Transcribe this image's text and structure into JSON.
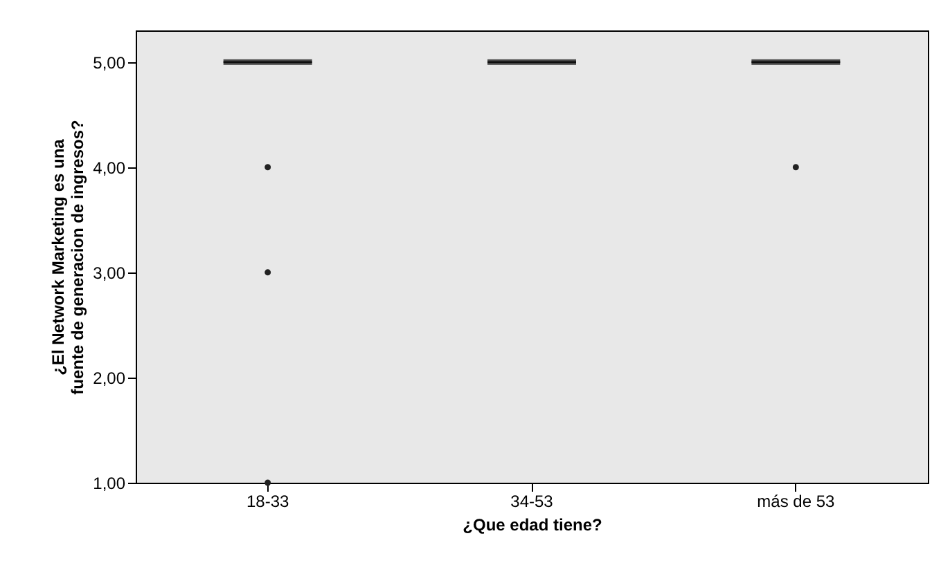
{
  "chart_data": {
    "type": "box",
    "xlabel": "¿Que edad tiene?",
    "ylabel": "¿El Network Marketing es una\nfuente de generacion de ingresos?",
    "categories": [
      "18-33",
      "34-53",
      "más de 53"
    ],
    "boxes": [
      {
        "low": 5,
        "q1": 5,
        "median": 5,
        "q3": 5,
        "high": 5,
        "outliers": [
          4,
          3,
          1
        ]
      },
      {
        "low": 5,
        "q1": 5,
        "median": 5,
        "q3": 5,
        "high": 5
      },
      {
        "low": 5,
        "q1": 5,
        "median": 5,
        "q3": 5,
        "high": 5,
        "outliers": [
          4
        ]
      }
    ],
    "ylim": [
      1,
      5.3
    ],
    "yticks": [
      {
        "value": 1,
        "label": "1,00"
      },
      {
        "value": 2,
        "label": "2,00"
      },
      {
        "value": 3,
        "label": "3,00"
      },
      {
        "value": 4,
        "label": "4,00"
      },
      {
        "value": 5,
        "label": "5,00"
      }
    ],
    "marker": "circle"
  }
}
